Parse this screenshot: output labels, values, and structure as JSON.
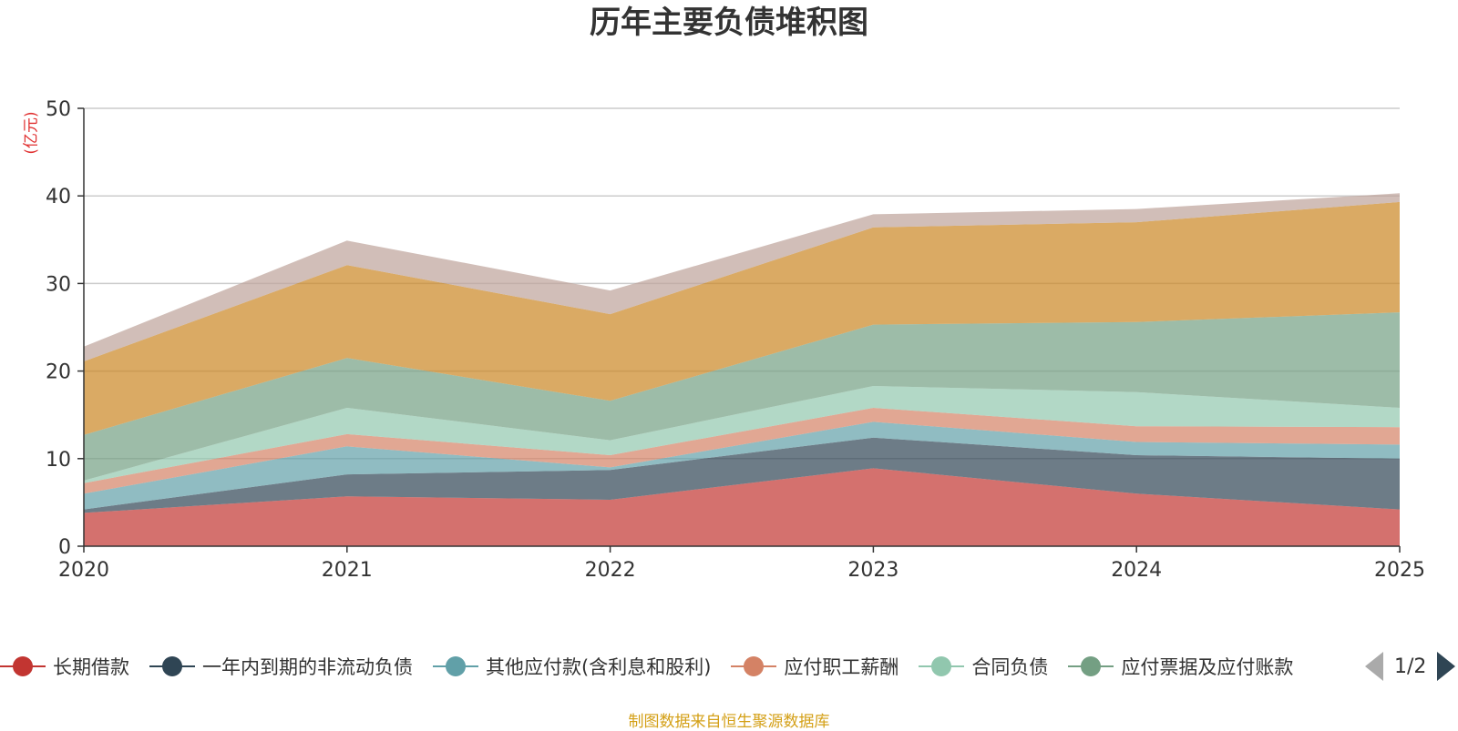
{
  "title": "历年主要负债堆积图",
  "y_unit": "(亿元)",
  "source": "制图数据来自恒生聚源数据库",
  "legend_page": "1/2",
  "chart_data": {
    "type": "area",
    "stacked": true,
    "title": "历年主要负债堆积图",
    "ylabel": "(亿元)",
    "xlabel": "",
    "categories": [
      "2020",
      "2021",
      "2022",
      "2023",
      "2024",
      "2025"
    ],
    "ylim": [
      0,
      50
    ],
    "yticks": [
      0,
      10,
      20,
      30,
      40,
      50
    ],
    "grid": true,
    "legend_position": "bottom",
    "series": [
      {
        "name": "长期借款",
        "color": "#c23531",
        "values": [
          3.8,
          5.7,
          5.3,
          8.9,
          6.0,
          4.2
        ]
      },
      {
        "name": "一年内到期的非流动负债",
        "color": "#2f4554",
        "values": [
          0.4,
          2.5,
          3.4,
          3.5,
          4.4,
          5.8
        ]
      },
      {
        "name": "其他应付款(含利息和股利)",
        "color": "#61a0a8",
        "values": [
          1.8,
          3.2,
          0.3,
          1.8,
          1.5,
          1.6
        ]
      },
      {
        "name": "应付职工薪酬",
        "color": "#d48265",
        "values": [
          1.2,
          1.4,
          1.4,
          1.6,
          1.8,
          2.0
        ]
      },
      {
        "name": "合同负债",
        "color": "#91c7ae",
        "values": [
          0.3,
          3.0,
          1.7,
          2.5,
          3.9,
          2.2
        ]
      },
      {
        "name": "应付票据及应付账款",
        "color": "#749f83",
        "values": [
          5.2,
          5.7,
          4.5,
          7.0,
          8.0,
          10.9
        ]
      },
      {
        "name": "",
        "color": "#ca8622",
        "values": [
          8.4,
          10.6,
          9.9,
          11.1,
          11.4,
          12.6
        ]
      },
      {
        "name": "",
        "color": "#bda29a",
        "values": [
          1.7,
          2.8,
          2.7,
          1.5,
          1.5,
          1.0
        ]
      }
    ]
  }
}
